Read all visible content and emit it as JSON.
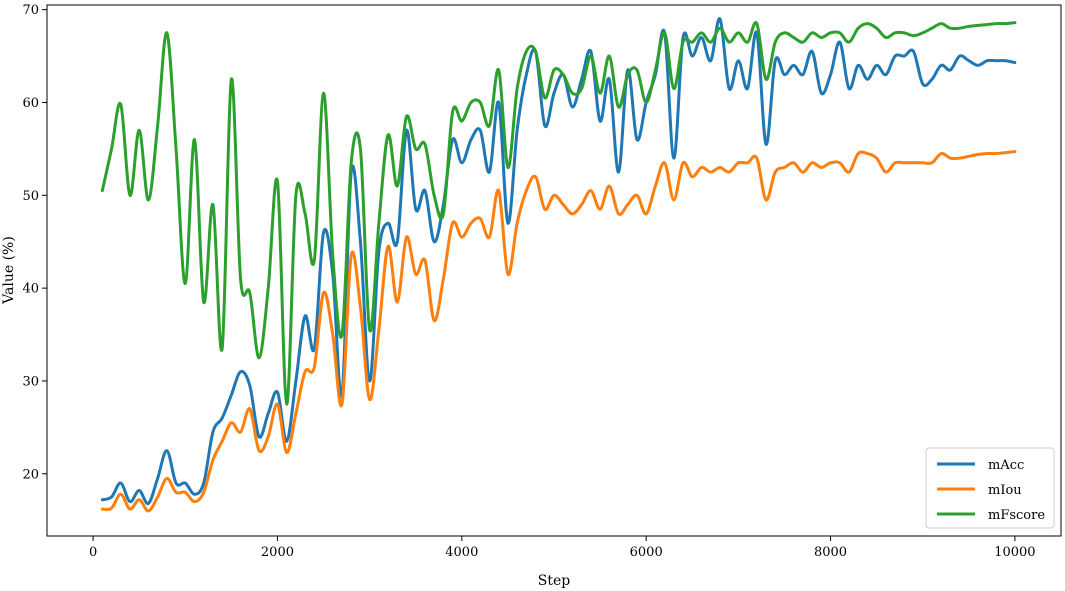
{
  "chart_data": {
    "type": "line",
    "title": "",
    "xlabel": "Step",
    "ylabel": "Value (%)",
    "xlim": [
      -500,
      10500
    ],
    "ylim": [
      13.3,
      70.5
    ],
    "xticks": [
      0,
      2000,
      4000,
      6000,
      8000,
      10000
    ],
    "yticks": [
      20,
      30,
      40,
      50,
      60,
      70
    ],
    "legend_position": "bottom-right",
    "grid": false,
    "series": [
      {
        "name": "mAcc",
        "color": "#1f77b4",
        "x": [
          100,
          200,
          300,
          400,
          500,
          600,
          700,
          800,
          900,
          1000,
          1100,
          1200,
          1300,
          1400,
          1500,
          1600,
          1700,
          1800,
          1900,
          2000,
          2100,
          2200,
          2300,
          2400,
          2500,
          2600,
          2700,
          2800,
          2900,
          3000,
          3100,
          3200,
          3300,
          3400,
          3500,
          3600,
          3700,
          3800,
          3900,
          4000,
          4100,
          4200,
          4300,
          4400,
          4500,
          4600,
          4700,
          4800,
          4900,
          5000,
          5100,
          5200,
          5300,
          5400,
          5500,
          5600,
          5700,
          5800,
          5900,
          6000,
          6100,
          6200,
          6300,
          6400,
          6500,
          6600,
          6700,
          6800,
          6900,
          7000,
          7100,
          7200,
          7300,
          7400,
          7500,
          7600,
          7700,
          7800,
          7900,
          8000,
          8100,
          8200,
          8300,
          8400,
          8500,
          8600,
          8700,
          8800,
          8900,
          9000,
          9100,
          9200,
          9300,
          9400,
          9500,
          9600,
          9700,
          9800,
          9900,
          10000
        ],
        "y": [
          17.2,
          17.5,
          19.0,
          17.0,
          18.2,
          16.8,
          19.5,
          22.5,
          19.0,
          19.0,
          17.8,
          19.0,
          24.5,
          26.0,
          28.5,
          31.0,
          29.5,
          24.0,
          26.5,
          28.8,
          23.5,
          30.0,
          37.0,
          33.5,
          46.0,
          41.5,
          28.5,
          52.5,
          45.0,
          30.0,
          44.0,
          47.0,
          45.0,
          57.0,
          48.5,
          50.5,
          45.0,
          49.0,
          56.0,
          53.5,
          56.0,
          57.0,
          52.5,
          60.0,
          47.0,
          57.0,
          63.0,
          65.5,
          57.5,
          61.0,
          63.0,
          59.5,
          62.5,
          65.5,
          58.0,
          62.5,
          52.5,
          63.5,
          56.0,
          60.0,
          63.0,
          67.5,
          54.0,
          67.0,
          65.0,
          67.0,
          64.5,
          69.0,
          61.5,
          64.5,
          61.5,
          67.5,
          55.5,
          64.5,
          63.0,
          64.0,
          63.0,
          65.5,
          61.0,
          63.0,
          66.5,
          61.5,
          64.0,
          62.5,
          64.0,
          63.0,
          65.0,
          65.0,
          65.5,
          62.0,
          62.5,
          64.0,
          63.5,
          65.0,
          64.5,
          64.0,
          64.5,
          64.5,
          64.5,
          64.3
        ]
      },
      {
        "name": "mIou",
        "color": "#ff7f0e",
        "x": [
          100,
          200,
          300,
          400,
          500,
          600,
          700,
          800,
          900,
          1000,
          1100,
          1200,
          1300,
          1400,
          1500,
          1600,
          1700,
          1800,
          1900,
          2000,
          2100,
          2200,
          2300,
          2400,
          2500,
          2600,
          2700,
          2800,
          2900,
          3000,
          3100,
          3200,
          3300,
          3400,
          3500,
          3600,
          3700,
          3800,
          3900,
          4000,
          4100,
          4200,
          4300,
          4400,
          4500,
          4600,
          4700,
          4800,
          4900,
          5000,
          5100,
          5200,
          5300,
          5400,
          5500,
          5600,
          5700,
          5800,
          5900,
          6000,
          6100,
          6200,
          6300,
          6400,
          6500,
          6600,
          6700,
          6800,
          6900,
          7000,
          7100,
          7200,
          7300,
          7400,
          7500,
          7600,
          7700,
          7800,
          7900,
          8000,
          8100,
          8200,
          8300,
          8400,
          8500,
          8600,
          8700,
          8800,
          8900,
          9000,
          9100,
          9200,
          9300,
          9400,
          9500,
          9600,
          9700,
          9800,
          9900,
          10000
        ],
        "y": [
          16.2,
          16.3,
          17.8,
          16.2,
          17.2,
          16.0,
          17.5,
          19.5,
          18.0,
          18.0,
          17.0,
          18.0,
          21.5,
          23.5,
          25.5,
          24.5,
          27.0,
          22.5,
          24.0,
          27.5,
          22.3,
          26.5,
          31.0,
          31.5,
          39.5,
          35.0,
          27.5,
          43.5,
          38.0,
          28.0,
          35.5,
          44.5,
          38.5,
          45.5,
          41.5,
          43.0,
          36.5,
          41.0,
          47.0,
          45.5,
          47.0,
          47.5,
          45.5,
          50.5,
          41.5,
          47.0,
          50.5,
          52.0,
          48.5,
          50.0,
          49.0,
          48.0,
          49.0,
          50.5,
          48.5,
          51.0,
          48.0,
          49.0,
          50.0,
          48.0,
          51.0,
          53.5,
          49.5,
          53.5,
          52.0,
          53.0,
          52.5,
          53.0,
          52.5,
          53.5,
          53.5,
          54.0,
          49.5,
          52.5,
          53.0,
          53.5,
          52.5,
          53.5,
          53.0,
          53.5,
          53.5,
          52.5,
          54.5,
          54.5,
          54.0,
          52.5,
          53.5,
          53.5,
          53.5,
          53.5,
          53.5,
          54.5,
          54.0,
          54.0,
          54.2,
          54.4,
          54.5,
          54.5,
          54.6,
          54.7
        ]
      },
      {
        "name": "mFscore",
        "color": "#2ca02c",
        "x": [
          100,
          200,
          300,
          400,
          500,
          600,
          700,
          800,
          900,
          1000,
          1100,
          1200,
          1300,
          1400,
          1500,
          1600,
          1700,
          1800,
          1900,
          2000,
          2100,
          2200,
          2300,
          2400,
          2500,
          2600,
          2700,
          2800,
          2900,
          3000,
          3100,
          3200,
          3300,
          3400,
          3500,
          3600,
          3700,
          3800,
          3900,
          4000,
          4100,
          4200,
          4300,
          4400,
          4500,
          4600,
          4700,
          4800,
          4900,
          5000,
          5100,
          5200,
          5300,
          5400,
          5500,
          5600,
          5700,
          5800,
          5900,
          6000,
          6100,
          6200,
          6300,
          6400,
          6500,
          6600,
          6700,
          6800,
          6900,
          7000,
          7100,
          7200,
          7300,
          7400,
          7500,
          7600,
          7700,
          7800,
          7900,
          8000,
          8100,
          8200,
          8300,
          8400,
          8500,
          8600,
          8700,
          8800,
          8900,
          9000,
          9100,
          9200,
          9300,
          9400,
          9500,
          9600,
          9700,
          9800,
          9900,
          10000
        ],
        "y": [
          50.5,
          55.0,
          59.8,
          50.0,
          57.0,
          49.5,
          57.5,
          67.5,
          55.0,
          40.5,
          56.0,
          38.5,
          49.0,
          33.5,
          62.5,
          41.0,
          39.5,
          32.5,
          40.0,
          51.5,
          27.5,
          50.0,
          48.0,
          43.0,
          61.0,
          43.5,
          35.0,
          53.5,
          55.0,
          35.5,
          47.0,
          56.5,
          51.0,
          58.5,
          55.0,
          55.5,
          50.0,
          48.0,
          59.0,
          58.0,
          60.0,
          60.0,
          57.5,
          63.5,
          53.0,
          61.5,
          65.5,
          65.5,
          60.5,
          63.5,
          63.0,
          61.0,
          61.5,
          65.0,
          61.0,
          65.0,
          59.5,
          63.0,
          63.5,
          60.0,
          63.5,
          67.5,
          61.5,
          66.5,
          66.5,
          67.5,
          66.5,
          68.0,
          66.5,
          67.5,
          66.5,
          68.5,
          62.5,
          66.5,
          67.5,
          67.0,
          66.5,
          67.5,
          67.0,
          67.5,
          67.5,
          66.5,
          68.0,
          68.5,
          68.0,
          67.0,
          67.5,
          67.5,
          67.2,
          67.5,
          68.0,
          68.5,
          68.0,
          68.0,
          68.2,
          68.3,
          68.4,
          68.5,
          68.5,
          68.6
        ]
      }
    ]
  }
}
